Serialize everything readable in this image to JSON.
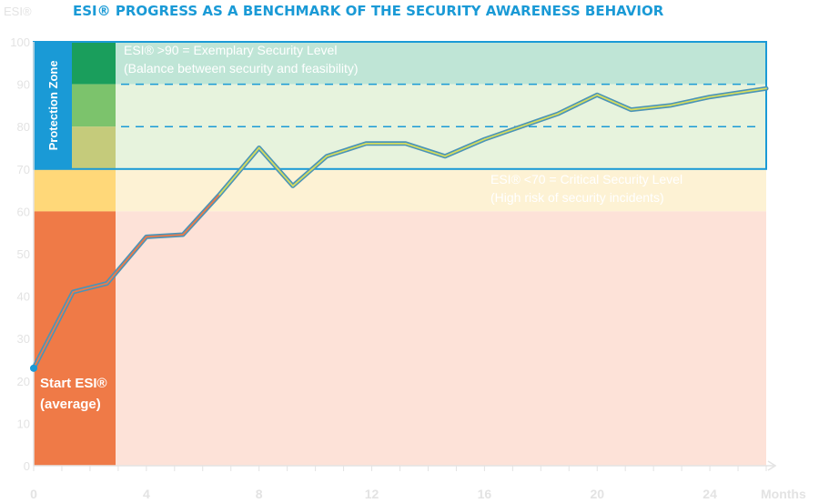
{
  "header": {
    "title": "ESI® PROGRESS AS A BENCHMARK OF THE SECURITY AWARENESS BEHAVIOR",
    "y_axis_label": "ESI®",
    "x_axis_label": "Months"
  },
  "zones": {
    "protection_label": "Protection Zone",
    "exemplary_title": "ESI® >90 = Exemplary Security Level",
    "exemplary_sub": "(Balance between security and feasibility)",
    "critical_title": "ESI® <70 = Critical Security Level",
    "critical_sub": "(High risk of security incidents)",
    "start_label_1": "Start ESI®",
    "start_label_2": "(average)"
  },
  "colors": {
    "title": "#1a9ad6",
    "axis_text": "#e3e3e3",
    "protection_box": "#1a9ad6",
    "zone_90_100": "#bfe5d6",
    "zone_70_90": "#e7f3dd",
    "zone_60_70": "#fdf2d4",
    "zone_0_60": "#fde2d8",
    "strip_90_100": "#1a9e5c",
    "strip_80_90": "#7cc36c",
    "strip_70_80": "#c5cb7b",
    "strip_60_70": "#ffd879",
    "strip_0_60": "#ef7a47",
    "dashed_line": "#1a9ad6",
    "line_outer": "#4a94b8",
    "line_inner_low": "#ef7a47",
    "line_inner_high": "#d6dc5e"
  },
  "chart_data": {
    "type": "line",
    "title": "ESI® PROGRESS AS A BENCHMARK OF THE SECURITY AWARENESS BEHAVIOR",
    "xlabel": "Months",
    "ylabel": "ESI®",
    "xlim": [
      0,
      26
    ],
    "ylim": [
      0,
      100
    ],
    "x_ticks": [
      "0",
      "4",
      "8",
      "12",
      "16",
      "20",
      "24"
    ],
    "x_tick_values": [
      0,
      4,
      8,
      12,
      16,
      20,
      24
    ],
    "y_ticks": [
      "0",
      "10",
      "20",
      "30",
      "40",
      "50",
      "60",
      "70",
      "80",
      "90",
      "100"
    ],
    "y_tick_values": [
      0,
      10,
      20,
      30,
      40,
      50,
      60,
      70,
      80,
      90,
      100
    ],
    "reference_lines": [
      80,
      90
    ],
    "protection_zone": [
      70,
      100
    ],
    "series": [
      {
        "x": [
          0,
          1.4,
          2.6,
          4,
          5.3,
          6.6,
          8,
          9.2,
          10.4,
          11.8,
          13.2,
          14.6,
          16,
          17.3,
          18.6,
          20,
          21.2,
          22.6,
          24,
          26
        ],
        "values": [
          23,
          41,
          43,
          54,
          54.5,
          64,
          75,
          66,
          73,
          76,
          76,
          73,
          77,
          80,
          83,
          87.5,
          84,
          85,
          87,
          89
        ]
      }
    ],
    "grid": false
  }
}
